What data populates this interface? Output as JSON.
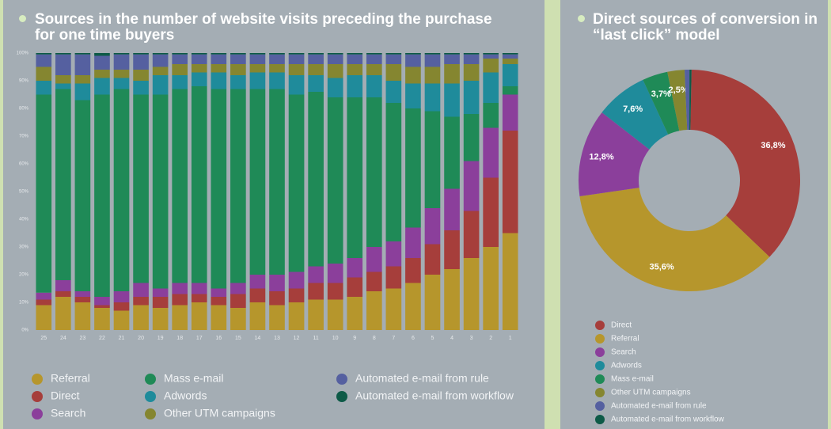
{
  "chart_data": [
    {
      "type": "bar",
      "stacked": true,
      "title": "Sources in the number of website visits preceding the purchase for one time buyers",
      "categories": [
        "25",
        "24",
        "23",
        "22",
        "21",
        "20",
        "19",
        "18",
        "17",
        "16",
        "15",
        "14",
        "13",
        "12",
        "11",
        "10",
        "9",
        "8",
        "7",
        "6",
        "5",
        "4",
        "3",
        "2",
        "1"
      ],
      "ylim": [
        0,
        100
      ],
      "yticks": [
        {
          "value": 0,
          "label": "0%"
        },
        {
          "value": 10,
          "label": "10%"
        },
        {
          "value": 20,
          "label": "20%"
        },
        {
          "value": 30,
          "label": "30%"
        },
        {
          "value": 40,
          "label": "40%"
        },
        {
          "value": 50,
          "label": "50%"
        },
        {
          "value": 60,
          "label": "60%"
        },
        {
          "value": 70,
          "label": "70%"
        },
        {
          "value": 80,
          "label": "80%"
        },
        {
          "value": 90,
          "label": "90%"
        },
        {
          "value": 100,
          "label": "100%"
        }
      ],
      "series": [
        {
          "name": "Referral",
          "color": "#b6962c",
          "values": [
            9,
            12,
            10,
            8,
            7,
            9,
            8,
            9,
            10,
            9,
            8,
            10,
            9,
            10,
            11,
            11,
            12,
            14,
            15,
            17,
            20,
            22,
            26,
            30,
            35
          ]
        },
        {
          "name": "Direct",
          "color": "#a63e3b",
          "values": [
            2,
            2,
            2,
            1,
            3,
            3,
            4,
            4,
            3,
            3,
            5,
            5,
            5,
            5,
            6,
            6,
            7,
            7,
            8,
            9,
            11,
            14,
            17,
            25,
            37
          ]
        },
        {
          "name": "Search",
          "color": "#8b3f9b",
          "values": [
            2.5,
            4,
            2,
            3,
            4,
            5,
            3,
            4,
            4,
            3,
            4,
            5,
            6,
            6,
            6,
            7,
            7,
            9,
            9,
            11,
            13,
            15,
            18,
            18,
            13
          ]
        },
        {
          "name": "Mass e-mail",
          "color": "#1f8a57",
          "values": [
            71.5,
            69,
            69,
            73,
            73,
            68,
            70,
            70,
            71,
            72,
            70,
            67,
            67,
            64,
            63,
            60,
            58,
            54,
            50,
            43,
            35,
            26,
            17,
            9,
            3
          ]
        },
        {
          "name": "Adwords",
          "color": "#1f8b9b",
          "values": [
            5,
            2,
            6,
            6,
            4,
            5,
            7,
            5,
            5,
            6,
            5,
            6,
            6,
            7,
            6,
            7,
            8,
            8,
            8,
            9,
            10,
            12,
            12,
            11,
            8
          ]
        },
        {
          "name": "Other UTM campaigns",
          "color": "#858630",
          "values": [
            5,
            3,
            3,
            3,
            3,
            4,
            3,
            4,
            3,
            3,
            4,
            3,
            3,
            4,
            4,
            5,
            4,
            4,
            6,
            6,
            6,
            7,
            6,
            5,
            2
          ]
        },
        {
          "name": "Automated e-mail from rule",
          "color": "#5560a0",
          "values": [
            4.5,
            7.5,
            7.5,
            5,
            5.5,
            5.5,
            4.5,
            3.5,
            3.5,
            3.5,
            3.5,
            3.5,
            3.5,
            3.5,
            3.5,
            3.5,
            3.5,
            3.5,
            3.5,
            4.5,
            4.5,
            3.5,
            3.5,
            1.5,
            1.5
          ]
        },
        {
          "name": "Automated e-mail from workflow",
          "color": "#0d5a47",
          "values": [
            0.5,
            0.5,
            0.5,
            1,
            0.5,
            0.5,
            0.5,
            0.5,
            0.5,
            0.5,
            0.5,
            0.5,
            0.5,
            0.5,
            0.5,
            0.5,
            0.5,
            0.5,
            0.5,
            0.5,
            0.5,
            0.5,
            0.5,
            0.5,
            0.5
          ]
        }
      ]
    },
    {
      "type": "pie",
      "donut": true,
      "title": "Direct sources of conversion in “last click” model",
      "categories": [
        "Direct",
        "Referral",
        "Search",
        "Adwords",
        "Mass e-mail",
        "Other UTM campaigns",
        "Automated e-mail from rule",
        "Automated e-mail from workflow"
      ],
      "values": [
        36.8,
        35.6,
        12.8,
        7.6,
        3.7,
        2.5,
        0.7,
        0.3
      ],
      "value_labels": [
        "36,8%",
        "35,6%",
        "12,8%",
        "7,6%",
        "3,7%",
        "2,5%",
        null,
        null
      ],
      "colors": [
        "#a63e3b",
        "#b6962c",
        "#8b3f9b",
        "#1f8b9b",
        "#1f8a57",
        "#858630",
        "#5560a0",
        "#0d5a47"
      ]
    }
  ]
}
